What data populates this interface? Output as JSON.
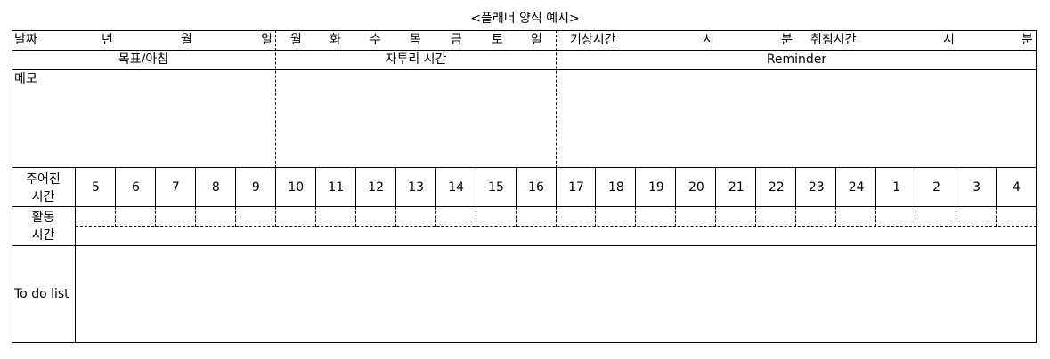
{
  "title": "<플래너 양식 예시>",
  "header": {
    "date_label": "날짜",
    "year": "년",
    "month": "월",
    "day": "일",
    "weekdays": [
      "월",
      "화",
      "수",
      "목",
      "금",
      "토",
      "일"
    ],
    "wake_label": "기상시간",
    "wake_hour": "시",
    "wake_min": "분",
    "sleep_label": "취침시간",
    "sleep_hour": "시",
    "sleep_min": "분"
  },
  "sections": {
    "goal": "목표/아침",
    "reflection": "자투리 시간",
    "reminder": "Reminder",
    "memo": "메모"
  },
  "schedule": {
    "given_time_line1": "주어진",
    "given_time_line2": "시간",
    "activity_line1": "활동",
    "activity_line2": "시간",
    "hours": [
      "5",
      "6",
      "7",
      "8",
      "9",
      "10",
      "11",
      "12",
      "13",
      "14",
      "15",
      "16",
      "17",
      "18",
      "19",
      "20",
      "21",
      "22",
      "23",
      "24",
      "1",
      "2",
      "3",
      "4"
    ]
  },
  "todo": {
    "label": "To do list"
  }
}
